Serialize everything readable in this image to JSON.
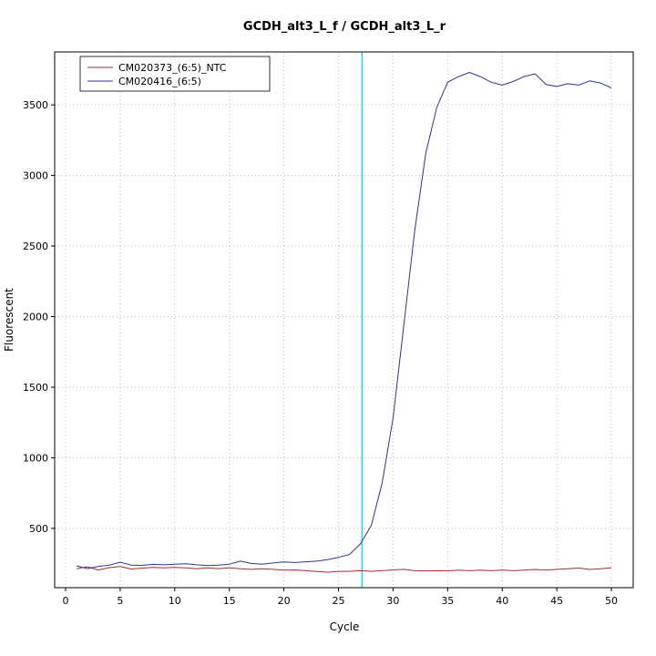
{
  "chart_data": {
    "type": "line",
    "title": "GCDH_alt3_L_f / GCDH_alt3_L_r",
    "xlabel": "Cycle",
    "ylabel": "Fluorescent",
    "xlim": [
      -1,
      52
    ],
    "ylim": [
      80,
      3875
    ],
    "xticks": [
      0,
      5,
      10,
      15,
      20,
      25,
      30,
      35,
      40,
      45,
      50
    ],
    "yticks": [
      500,
      1000,
      1500,
      2000,
      2500,
      3000,
      3500
    ],
    "grid": true,
    "grid_color": "#bdbdbd",
    "axis_color": "#000000",
    "threshold_line": {
      "x": 27.15,
      "color": "#00dcdc"
    },
    "legend": {
      "position": "topleft"
    },
    "x": [
      1,
      2,
      3,
      4,
      5,
      6,
      7,
      8,
      9,
      10,
      11,
      12,
      13,
      14,
      15,
      16,
      17,
      18,
      19,
      20,
      21,
      22,
      23,
      24,
      25,
      26,
      27,
      28,
      29,
      30,
      31,
      32,
      33,
      34,
      35,
      36,
      37,
      38,
      39,
      40,
      41,
      42,
      43,
      44,
      45,
      46,
      47,
      48,
      49,
      50
    ],
    "series": [
      {
        "name": "CM020373_(6:5)_NTC",
        "color": "#9e2f2f",
        "values": [
          215,
          228,
          205,
          222,
          230,
          212,
          218,
          224,
          220,
          224,
          221,
          214,
          220,
          215,
          221,
          214,
          210,
          214,
          210,
          204,
          206,
          200,
          194,
          190,
          194,
          196,
          200,
          196,
          200,
          206,
          210,
          200,
          199,
          200,
          199,
          204,
          200,
          204,
          200,
          205,
          200,
          204,
          209,
          204,
          210,
          214,
          219,
          209,
          214,
          220
        ]
      },
      {
        "name": "CM020416_(6:5)",
        "color": "#32329b",
        "values": [
          235,
          215,
          230,
          240,
          260,
          240,
          238,
          245,
          242,
          246,
          250,
          242,
          236,
          240,
          246,
          268,
          252,
          246,
          255,
          262,
          258,
          263,
          268,
          278,
          295,
          315,
          390,
          520,
          820,
          1280,
          1950,
          2620,
          3160,
          3480,
          3660,
          3700,
          3730,
          3700,
          3660,
          3640,
          3665,
          3700,
          3720,
          3645,
          3630,
          3650,
          3640,
          3670,
          3655,
          3620
        ]
      }
    ]
  }
}
